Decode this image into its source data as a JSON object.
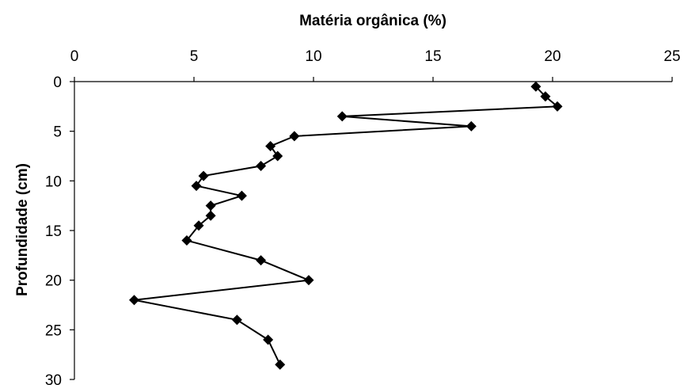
{
  "chart_data": {
    "type": "line",
    "xlabel": "Matéria orgânica (%)",
    "ylabel": "Profundidade (cm)",
    "xlim": [
      0,
      25
    ],
    "ylim": [
      0,
      30
    ],
    "x_axis_position": "top",
    "y_axis_reversed": true,
    "x_ticks": [
      0,
      5,
      10,
      15,
      20,
      25
    ],
    "y_ticks": [
      0,
      5,
      10,
      15,
      20,
      25,
      30
    ],
    "grid": false,
    "legend": "none",
    "marker": "diamond",
    "color": "#000000",
    "series": [
      {
        "points": [
          {
            "x": 19.3,
            "y": 0.5
          },
          {
            "x": 19.7,
            "y": 1.5
          },
          {
            "x": 20.2,
            "y": 2.5
          },
          {
            "x": 11.2,
            "y": 3.5
          },
          {
            "x": 16.6,
            "y": 4.5
          },
          {
            "x": 9.2,
            "y": 5.5
          },
          {
            "x": 8.2,
            "y": 6.5
          },
          {
            "x": 8.5,
            "y": 7.5
          },
          {
            "x": 7.8,
            "y": 8.5
          },
          {
            "x": 5.4,
            "y": 9.5
          },
          {
            "x": 5.1,
            "y": 10.5
          },
          {
            "x": 7.0,
            "y": 11.5
          },
          {
            "x": 5.7,
            "y": 12.5
          },
          {
            "x": 5.7,
            "y": 13.5
          },
          {
            "x": 5.2,
            "y": 14.5
          },
          {
            "x": 4.7,
            "y": 16.0
          },
          {
            "x": 7.8,
            "y": 18.0
          },
          {
            "x": 9.8,
            "y": 20.0
          },
          {
            "x": 2.5,
            "y": 22.0
          },
          {
            "x": 6.8,
            "y": 24.0
          },
          {
            "x": 8.1,
            "y": 26.0
          },
          {
            "x": 8.6,
            "y": 28.5
          }
        ]
      }
    ]
  }
}
